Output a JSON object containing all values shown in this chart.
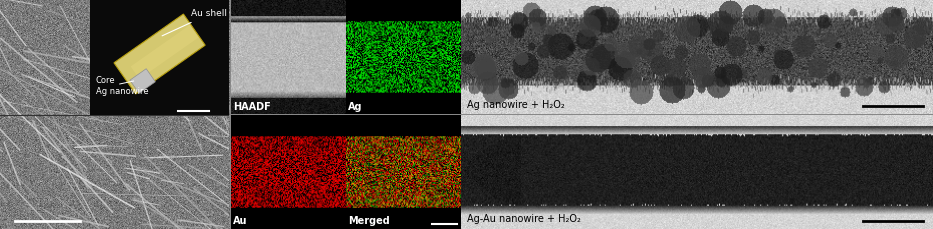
{
  "panel_labels": {
    "haadf": "HAADF",
    "ag": "Ag",
    "au": "Au",
    "merged": "Merged"
  },
  "annotations": {
    "au_shell": "Au shell",
    "core_ag": "Core\nAg nanowire",
    "top_right": "Ag nanowire + H₂O₂",
    "bottom_right": "Ag-Au nanowire + H₂O₂"
  },
  "label_fontsize": 7,
  "annotation_fontsize": 6.5,
  "au_shell_color": "#d4c870",
  "sem_gray": "#606060"
}
